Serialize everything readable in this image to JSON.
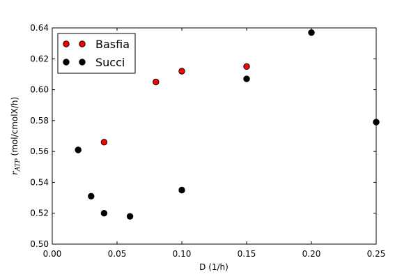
{
  "chart_data": {
    "type": "scatter",
    "title": "",
    "xlabel": "D (1/h)",
    "ylabel": {
      "symbol": "r",
      "subscript": "ATP",
      "units": " (mol/cmolX/h)"
    },
    "xlim": [
      0.0,
      0.25
    ],
    "ylim": [
      0.5,
      0.64
    ],
    "xticks": [
      0.0,
      0.05,
      0.1,
      0.15,
      0.2,
      0.25
    ],
    "xtick_labels": [
      "0.00",
      "0.05",
      "0.10",
      "0.15",
      "0.20",
      "0.25"
    ],
    "yticks": [
      0.5,
      0.52,
      0.54,
      0.56,
      0.58,
      0.6,
      0.62,
      0.64
    ],
    "ytick_labels": [
      "0.50",
      "0.52",
      "0.54",
      "0.56",
      "0.58",
      "0.60",
      "0.62",
      "0.64"
    ],
    "grid": false,
    "legend_position": "top-left",
    "series": [
      {
        "name": "Basfia",
        "color": "#ff0000",
        "x": [
          0.02,
          0.04,
          0.08,
          0.1,
          0.15
        ],
        "y": [
          0.561,
          0.566,
          0.605,
          0.612,
          0.615
        ]
      },
      {
        "name": "Succi",
        "color": "#000000",
        "x": [
          0.02,
          0.03,
          0.04,
          0.06,
          0.1,
          0.15,
          0.2,
          0.25
        ],
        "y": [
          0.561,
          0.531,
          0.52,
          0.518,
          0.535,
          0.607,
          0.637,
          0.579
        ]
      }
    ]
  }
}
